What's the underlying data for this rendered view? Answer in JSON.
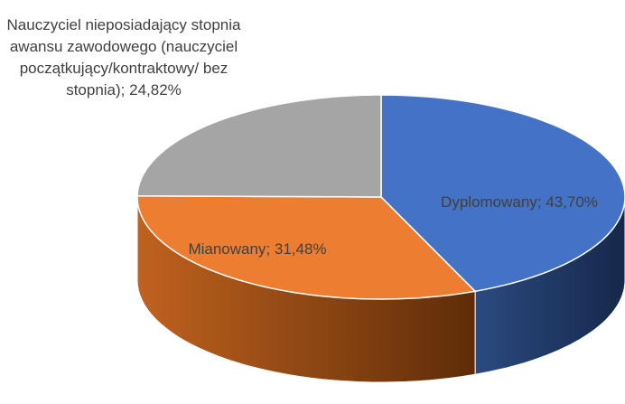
{
  "chart_data": {
    "type": "pie",
    "categories": [
      "Dyplomowany",
      "Mianowany",
      "Nauczyciel nieposiadający stopnia awansu zawodowego (nauczyciel początkujący/kontraktowy/ bez stopnia)"
    ],
    "values": [
      43.7,
      31.48,
      24.82
    ],
    "value_labels": [
      "43,70%",
      "31,48%",
      "24,82%"
    ],
    "label_separator": "; ",
    "colors": [
      "#4472c4",
      "#ed7d31",
      "#a5a5a5"
    ],
    "side_colors": [
      "#1f3458",
      "#8a4310",
      "#6e6e6e"
    ]
  }
}
